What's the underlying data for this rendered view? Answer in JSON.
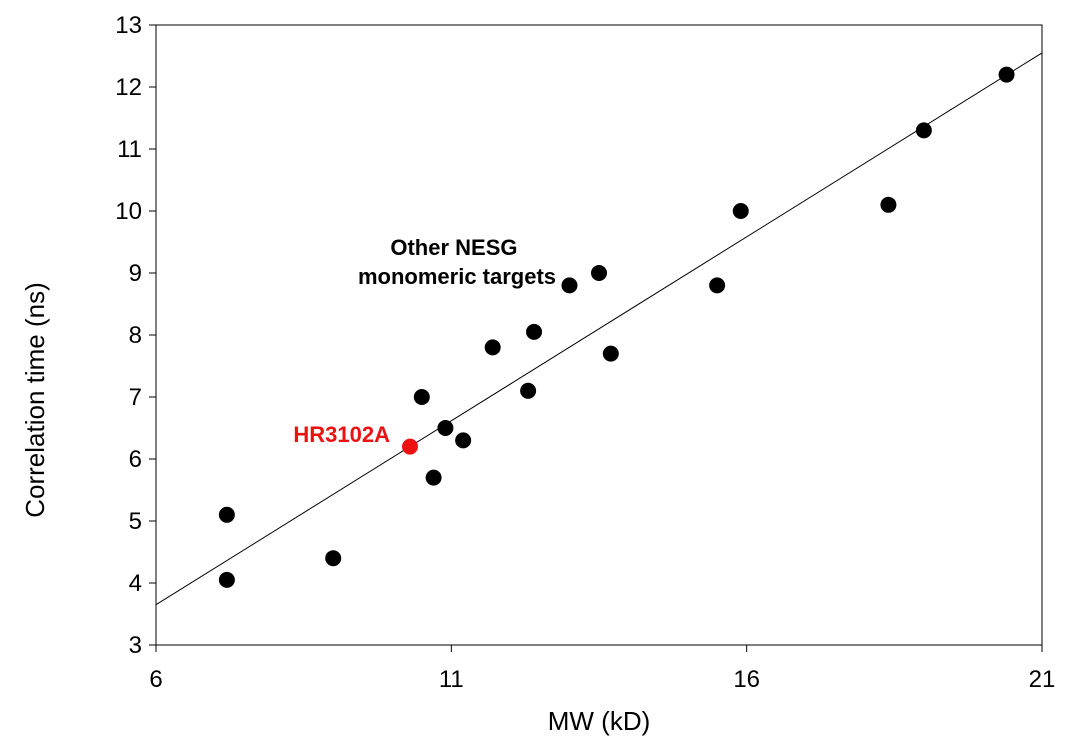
{
  "chart_data": {
    "type": "scatter",
    "xlabel": "MW (kD)",
    "ylabel": "Correlation time  (ns)",
    "xlim": [
      6,
      21
    ],
    "ylim": [
      3,
      13
    ],
    "xticks": [
      "6",
      "11",
      "16",
      "21"
    ],
    "yticks": [
      "3",
      "4",
      "5",
      "6",
      "7",
      "8",
      "9",
      "10",
      "11",
      "12",
      "13"
    ],
    "grid": false,
    "series": [
      {
        "name": "Other NESG monomeric targets",
        "color": "#000000",
        "points": [
          {
            "x": 7.2,
            "y": 4.05
          },
          {
            "x": 7.2,
            "y": 5.1
          },
          {
            "x": 9.0,
            "y": 4.4
          },
          {
            "x": 10.5,
            "y": 7.0
          },
          {
            "x": 10.7,
            "y": 5.7
          },
          {
            "x": 10.9,
            "y": 6.5
          },
          {
            "x": 11.2,
            "y": 6.3
          },
          {
            "x": 11.7,
            "y": 7.8
          },
          {
            "x": 12.3,
            "y": 7.1
          },
          {
            "x": 12.4,
            "y": 8.05
          },
          {
            "x": 13.0,
            "y": 8.8
          },
          {
            "x": 13.5,
            "y": 9.0
          },
          {
            "x": 13.7,
            "y": 7.7
          },
          {
            "x": 15.5,
            "y": 8.8
          },
          {
            "x": 15.9,
            "y": 10.0
          },
          {
            "x": 18.4,
            "y": 10.1
          },
          {
            "x": 19.0,
            "y": 11.3
          },
          {
            "x": 20.4,
            "y": 12.2
          }
        ]
      },
      {
        "name": "HR3102A",
        "color": "#ee1111",
        "points": [
          {
            "x": 10.3,
            "y": 6.2
          }
        ]
      }
    ],
    "trendline": {
      "x": [
        6,
        21
      ],
      "y": [
        3.65,
        12.55
      ]
    },
    "annotations": [
      {
        "text_lines": [
          "Other NESG",
          "monomeric targets"
        ],
        "color": "#000000"
      },
      {
        "text_lines": [
          "HR3102A"
        ],
        "color": "#ee1111"
      }
    ]
  }
}
